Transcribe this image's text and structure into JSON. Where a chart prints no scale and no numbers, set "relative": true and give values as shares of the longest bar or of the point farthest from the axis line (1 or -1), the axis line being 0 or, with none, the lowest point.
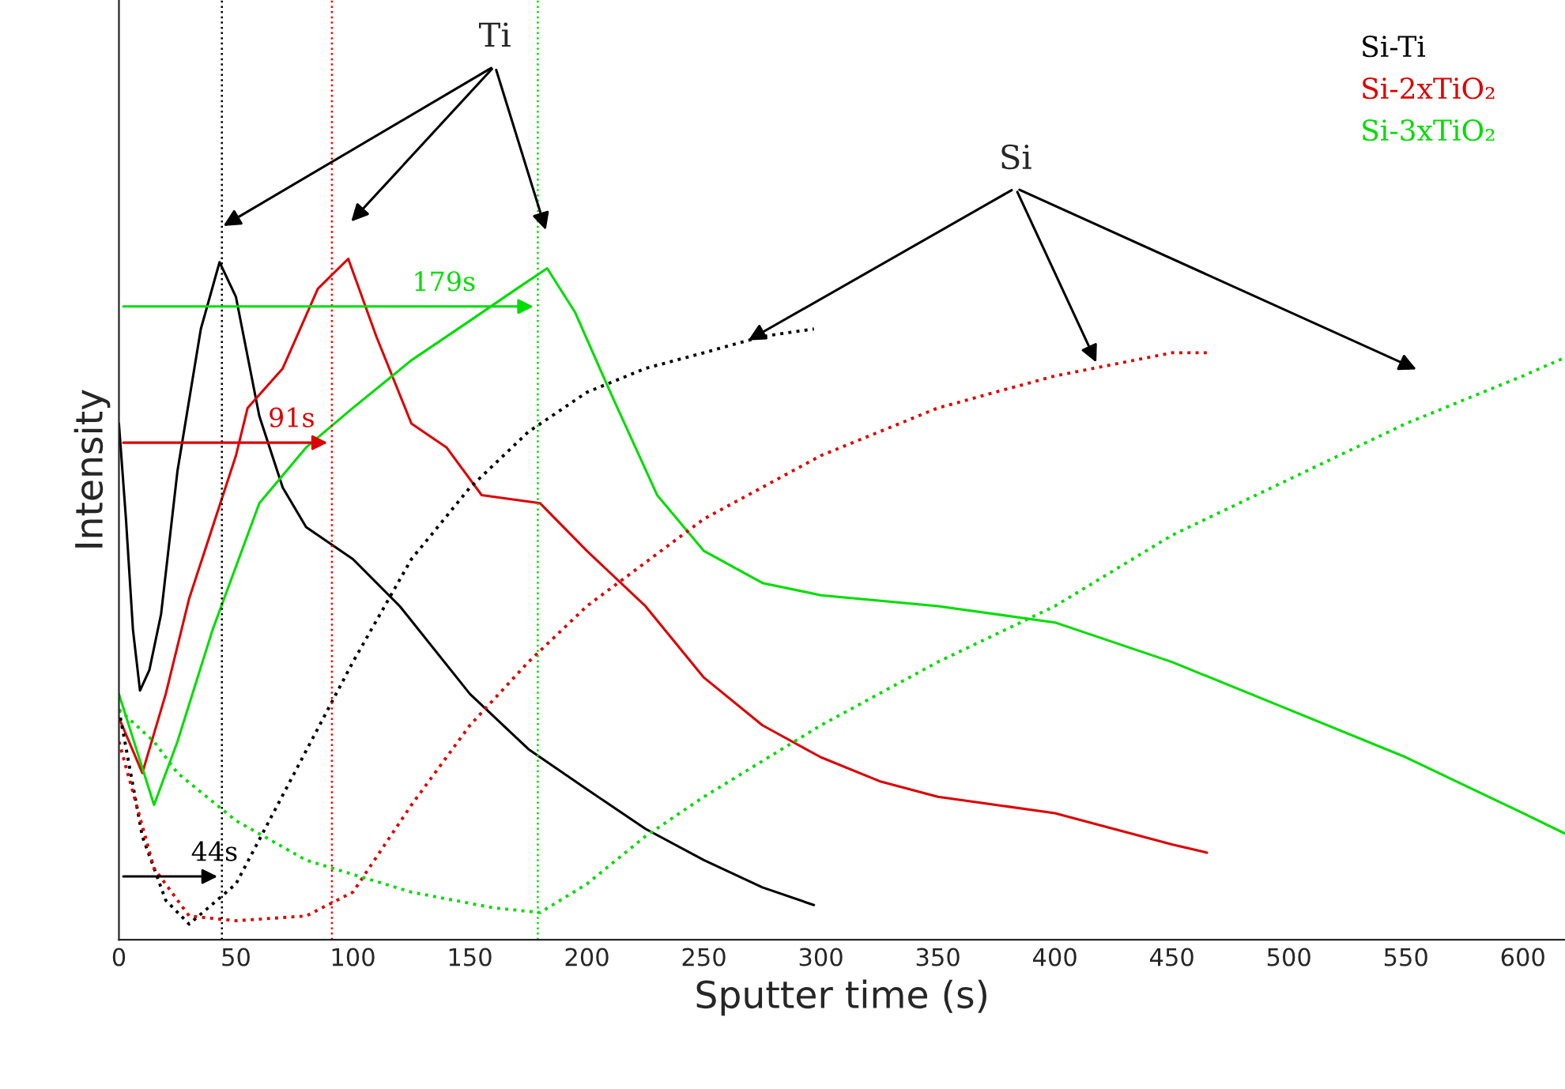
{
  "chart_data": {
    "type": "line",
    "relative": true,
    "xlabel": "Sputter time (s)",
    "ylabel": "Intensity",
    "xlim": [
      0,
      618
    ],
    "xticks": [
      0,
      50,
      100,
      150,
      200,
      250,
      300,
      350,
      400,
      450,
      500,
      550,
      600
    ],
    "legend": "top right",
    "grid": false,
    "line_style": "solid",
    "marker": "none",
    "annotations": [
      "Ti",
      "Si",
      {
        "text": "44s",
        "x": 44,
        "y": 0.093
      },
      {
        "text": "91s",
        "x": 91,
        "y": 0.73
      },
      {
        "text": "179s",
        "x": 179,
        "y": 0.93
      }
    ],
    "ref_lines": [
      {
        "axis": "x",
        "value": 44,
        "color": "#000000",
        "line_style": "dotted"
      },
      {
        "axis": "x",
        "value": 91,
        "color": "#ff0000",
        "line_style": "dotted"
      },
      {
        "axis": "x",
        "value": 179,
        "color": "#00dd00",
        "line_style": "dotted"
      }
    ],
    "series": [
      {
        "name": "Si-Ti",
        "color": "#000000",
        "x": [
          0,
          3,
          6,
          9,
          13,
          18,
          25,
          35,
          43,
          50,
          60,
          70,
          80,
          100,
          120,
          150,
          175,
          200,
          225,
          250,
          275,
          297
        ],
        "values": [
          0.758,
          0.618,
          0.455,
          0.366,
          0.396,
          0.478,
          0.688,
          0.897,
          0.995,
          0.944,
          0.769,
          0.664,
          0.606,
          0.559,
          0.49,
          0.361,
          0.28,
          0.221,
          0.163,
          0.117,
          0.077,
          0.051
        ]
      },
      {
        "name": "Si-2xTiO₂",
        "color": "#dd0000",
        "x": [
          0,
          10,
          20,
          30,
          50,
          55,
          70,
          85,
          98,
          110,
          125,
          140,
          155,
          180,
          200,
          225,
          250,
          275,
          300,
          325,
          350,
          400,
          425,
          450,
          465
        ],
        "values": [
          0.326,
          0.245,
          0.361,
          0.501,
          0.711,
          0.781,
          0.839,
          0.956,
          1.0,
          0.886,
          0.758,
          0.723,
          0.653,
          0.641,
          0.571,
          0.49,
          0.385,
          0.315,
          0.268,
          0.233,
          0.21,
          0.186,
          0.163,
          0.14,
          0.128
        ]
      },
      {
        "name": "Si-3xTiO₂",
        "color": "#00dd00",
        "x": [
          0,
          15,
          25,
          40,
          60,
          80,
          100,
          125,
          150,
          170,
          183,
          195,
          210,
          230,
          250,
          275,
          300,
          350,
          400,
          450,
          500,
          550,
          600,
          618
        ],
        "values": [
          0.361,
          0.198,
          0.291,
          0.455,
          0.641,
          0.723,
          0.781,
          0.851,
          0.909,
          0.956,
          0.986,
          0.921,
          0.804,
          0.653,
          0.571,
          0.524,
          0.506,
          0.49,
          0.466,
          0.408,
          0.338,
          0.268,
          0.186,
          0.156
        ]
      },
      {
        "color": "#000000",
        "line_style": "dotted",
        "x": [
          0,
          10,
          20,
          30,
          50,
          75,
          100,
          125,
          150,
          175,
          200,
          225,
          250,
          275,
          297
        ],
        "values": [
          0.338,
          0.152,
          0.058,
          0.023,
          0.082,
          0.245,
          0.408,
          0.559,
          0.664,
          0.746,
          0.804,
          0.839,
          0.862,
          0.886,
          0.897
        ]
      },
      {
        "color": "#dd0000",
        "line_style": "dotted",
        "x": [
          0,
          15,
          30,
          50,
          80,
          100,
          125,
          150,
          175,
          200,
          250,
          300,
          350,
          400,
          450,
          465
        ],
        "values": [
          0.291,
          0.105,
          0.035,
          0.028,
          0.035,
          0.07,
          0.198,
          0.315,
          0.408,
          0.49,
          0.618,
          0.711,
          0.781,
          0.828,
          0.862,
          0.862
        ]
      },
      {
        "color": "#00dd00",
        "line_style": "dotted",
        "x": [
          0,
          15,
          25,
          50,
          80,
          125,
          160,
          180,
          200,
          225,
          250,
          300,
          350,
          400,
          450,
          500,
          550,
          600,
          618
        ],
        "values": [
          0.338,
          0.291,
          0.245,
          0.175,
          0.117,
          0.07,
          0.047,
          0.04,
          0.082,
          0.152,
          0.21,
          0.315,
          0.408,
          0.49,
          0.594,
          0.676,
          0.758,
          0.828,
          0.855
        ]
      }
    ]
  }
}
